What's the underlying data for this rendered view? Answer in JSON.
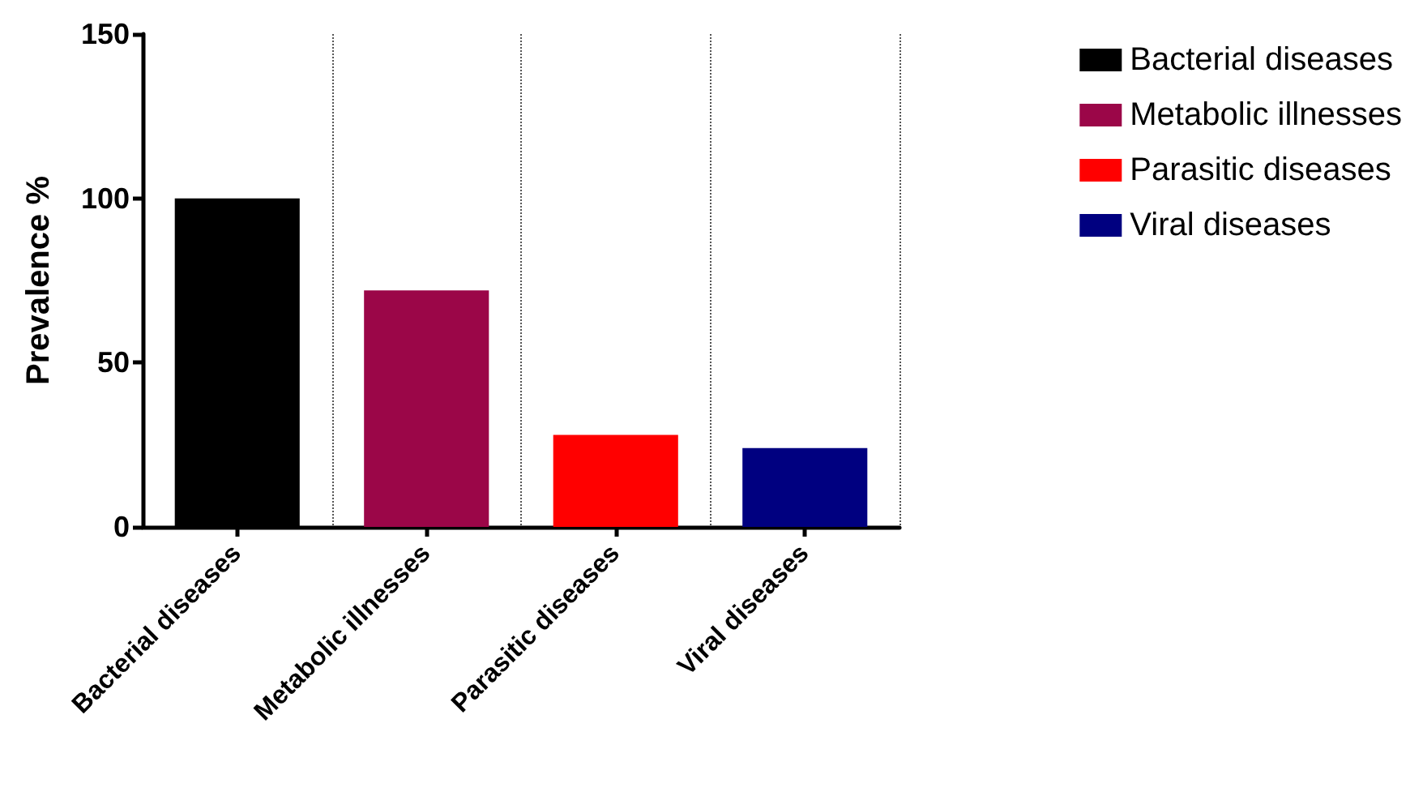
{
  "chart_data": {
    "type": "bar",
    "ylabel": "Prevalence %",
    "stacked": true,
    "categories": [
      "Bacterial diseases",
      "Metabolic illnesses",
      "Parasitic diseases",
      "Viral diseases"
    ],
    "series": [
      {
        "name": "Bacterial diseases",
        "color": "#000000",
        "values": [
          100,
          null,
          null,
          null
        ]
      },
      {
        "name": "Metabolic illnesses",
        "color": "#9b0648",
        "values": [
          null,
          72,
          null,
          null
        ]
      },
      {
        "name": "Parasitic diseases",
        "color": "#ff0000",
        "values": [
          null,
          null,
          28,
          null
        ]
      },
      {
        "name": "Viral diseases",
        "color": "#000080",
        "values": [
          null,
          null,
          null,
          24
        ]
      }
    ],
    "ylim": [
      0,
      150
    ],
    "yticks": [
      0,
      50,
      100,
      150
    ],
    "grid": "x",
    "legend": "top right"
  }
}
